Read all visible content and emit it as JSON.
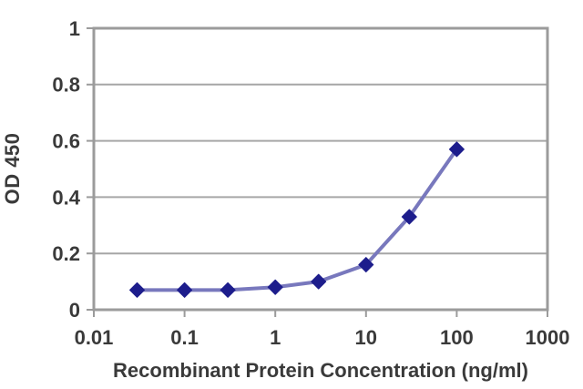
{
  "chart_data": {
    "type": "line",
    "title": "",
    "xlabel": "Recombinant Protein Concentration (ng/ml)",
    "ylabel": "OD 450",
    "x_scale": "log",
    "xlim": [
      0.01,
      1000
    ],
    "ylim": [
      0,
      1
    ],
    "x": [
      0.03,
      0.1,
      0.3,
      1,
      3,
      10,
      30,
      100
    ],
    "series": [
      {
        "name": "OD 450",
        "values": [
          0.07,
          0.07,
          0.07,
          0.08,
          0.1,
          0.16,
          0.33,
          0.57
        ]
      }
    ],
    "x_ticks": [
      "0.01",
      "0.1",
      "1",
      "10",
      "100",
      "1000"
    ],
    "x_tick_values": [
      0.01,
      0.1,
      1,
      10,
      100,
      1000
    ],
    "y_ticks": [
      "0",
      "0.2",
      "0.4",
      "0.6",
      "0.8",
      "1"
    ],
    "y_tick_values": [
      0,
      0.2,
      0.4,
      0.6,
      0.8,
      1
    ],
    "grid": "horizontal",
    "legend_position": "none",
    "marker": "diamond",
    "colors": {
      "line": "#7878bd",
      "marker": "#1d1d8c",
      "axis": "#9b9b9b",
      "gridline": "#a6a6a6",
      "text": "#3a3a3a",
      "background": "#ffffff"
    }
  }
}
